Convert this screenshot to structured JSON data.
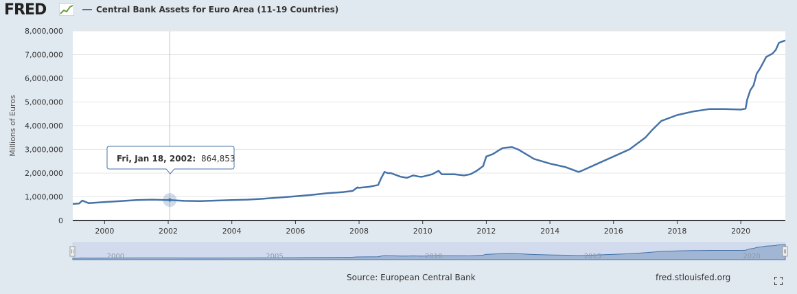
{
  "header": {
    "logo": "FRED",
    "series_title": "Central Bank Assets for Euro Area (11-19 Countries)"
  },
  "footer": {
    "source": "Source: European Central Bank",
    "site": "fred.stlouisfed.org"
  },
  "icons": {
    "logo_graph": "fred-graph-icon",
    "fullscreen": "fullscreen-icon"
  },
  "colors": {
    "line": "#4572a7",
    "background": "#e1e9f0",
    "plot": "#ffffff",
    "navigator_fill": "#c5d2e8"
  },
  "tooltip": {
    "date": "Fri, Jan 18, 2002:",
    "value": "864,853"
  },
  "navigator_ticks": [
    "2000",
    "2005",
    "2010",
    "2015",
    "2020"
  ],
  "chart_data": {
    "type": "line",
    "title": "Central Bank Assets for Euro Area (11-19 Countries)",
    "ylabel": "Millions of Euros",
    "xlim": [
      1999.0,
      2021.4
    ],
    "ylim": [
      0,
      8000000
    ],
    "yticks": [
      0,
      1000000,
      2000000,
      3000000,
      4000000,
      5000000,
      6000000,
      7000000,
      8000000
    ],
    "ytick_labels": [
      "0",
      "1,000,000",
      "2,000,000",
      "3,000,000",
      "4,000,000",
      "5,000,000",
      "6,000,000",
      "7,000,000",
      "8,000,000"
    ],
    "xticks": [
      2000,
      2002,
      2004,
      2006,
      2008,
      2010,
      2012,
      2014,
      2016,
      2018,
      2020
    ],
    "xtick_labels": [
      "2000",
      "2002",
      "2004",
      "2006",
      "2008",
      "2010",
      "2012",
      "2014",
      "2016",
      "2018",
      "2020"
    ],
    "grid": true,
    "highlight": {
      "x": 2002.05,
      "y": 864853
    },
    "series": [
      {
        "name": "Central Bank Assets for Euro Area (11-19 Countries)",
        "x": [
          1999.0,
          1999.2,
          1999.3,
          1999.5,
          2000.0,
          2000.5,
          2001.0,
          2001.5,
          2001.95,
          2002.05,
          2002.5,
          2003.0,
          2003.5,
          2004.0,
          2004.5,
          2005.0,
          2005.5,
          2006.0,
          2006.5,
          2007.0,
          2007.5,
          2007.8,
          2007.95,
          2008.0,
          2008.3,
          2008.6,
          2008.7,
          2008.8,
          2008.9,
          2009.0,
          2009.3,
          2009.5,
          2009.7,
          2009.9,
          2010.0,
          2010.3,
          2010.5,
          2010.6,
          2010.8,
          2011.0,
          2011.3,
          2011.5,
          2011.7,
          2011.9,
          2012.0,
          2012.2,
          2012.5,
          2012.8,
          2013.0,
          2013.5,
          2014.0,
          2014.5,
          2014.9,
          2015.0,
          2015.5,
          2016.0,
          2016.5,
          2017.0,
          2017.2,
          2017.5,
          2018.0,
          2018.5,
          2019.0,
          2019.5,
          2020.0,
          2020.15,
          2020.2,
          2020.3,
          2020.4,
          2020.5,
          2020.6,
          2020.8,
          2021.0,
          2021.1,
          2021.2,
          2021.4
        ],
        "y": [
          700000,
          720000,
          840000,
          730000,
          780000,
          820000,
          860000,
          880000,
          860000,
          864853,
          830000,
          820000,
          840000,
          860000,
          880000,
          920000,
          970000,
          1020000,
          1080000,
          1150000,
          1200000,
          1250000,
          1400000,
          1380000,
          1420000,
          1500000,
          1800000,
          2050000,
          2000000,
          2000000,
          1850000,
          1800000,
          1900000,
          1850000,
          1850000,
          1950000,
          2100000,
          1950000,
          1950000,
          1950000,
          1900000,
          1950000,
          2100000,
          2300000,
          2700000,
          2800000,
          3050000,
          3100000,
          3000000,
          2600000,
          2400000,
          2250000,
          2050000,
          2100000,
          2400000,
          2700000,
          3000000,
          3500000,
          3800000,
          4200000,
          4450000,
          4600000,
          4700000,
          4700000,
          4680000,
          4720000,
          5100000,
          5500000,
          5700000,
          6200000,
          6400000,
          6900000,
          7050000,
          7200000,
          7500000,
          7600000
        ]
      }
    ]
  }
}
